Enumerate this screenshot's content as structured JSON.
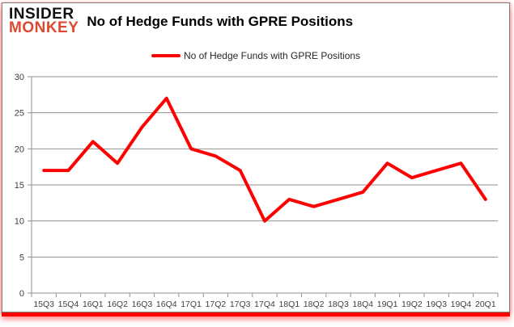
{
  "logo": {
    "line1": "INSIDER",
    "line2": "MONKEY"
  },
  "header": {
    "title": "No of Hedge Funds with GPRE Positions"
  },
  "legend": {
    "label": "No of Hedge Funds with GPRE Positions"
  },
  "colors": {
    "line": "#ff0000",
    "logo_accent": "#dd4931",
    "gridline": "#919191",
    "axis_text": "#3f3f3f"
  },
  "chart_data": {
    "type": "line",
    "title": "No of Hedge Funds with GPRE Positions",
    "categories": [
      "15Q3",
      "15Q4",
      "16Q1",
      "16Q2",
      "16Q3",
      "16Q4",
      "17Q1",
      "17Q2",
      "17Q3",
      "17Q4",
      "18Q1",
      "18Q2",
      "18Q3",
      "18Q4",
      "19Q1",
      "19Q2",
      "19Q3",
      "19Q4",
      "20Q1"
    ],
    "series": [
      {
        "name": "No of Hedge Funds with GPRE Positions",
        "values": [
          17,
          17,
          21,
          18,
          23,
          27,
          20,
          19,
          17,
          10,
          13,
          12,
          13,
          14,
          18,
          16,
          17,
          18,
          13
        ]
      }
    ],
    "xlabel": "",
    "ylabel": "",
    "ylim": [
      0,
      30
    ],
    "yticks": [
      0,
      5,
      10,
      15,
      20,
      25,
      30
    ],
    "grid": true,
    "legend_position": "top"
  }
}
